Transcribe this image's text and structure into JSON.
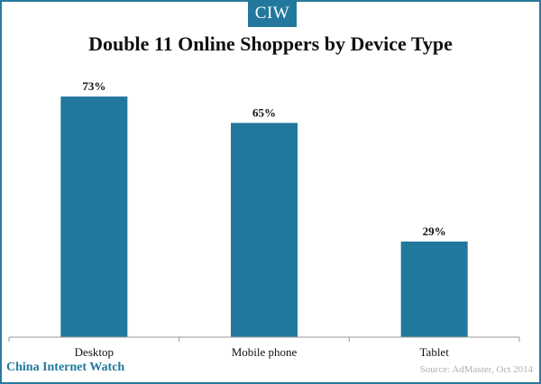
{
  "brand": {
    "logo_text": "CIW",
    "footer_name": "China Internet Watch"
  },
  "source": "Source: AdMaster, Oct 2014",
  "colors": {
    "bar": "#22789c",
    "accent": "#22789c",
    "frame": "#2a7a9e"
  },
  "chart_data": {
    "type": "bar",
    "title": "Double 11 Online Shoppers by Device Type",
    "categories": [
      "Desktop",
      "Mobile phone",
      "Tablet"
    ],
    "values": [
      73,
      65,
      29
    ],
    "value_labels": [
      "73%",
      "65%",
      "29%"
    ],
    "xlabel": "",
    "ylabel": "",
    "ylim": [
      0,
      80
    ],
    "grid": false,
    "legend": "none"
  }
}
